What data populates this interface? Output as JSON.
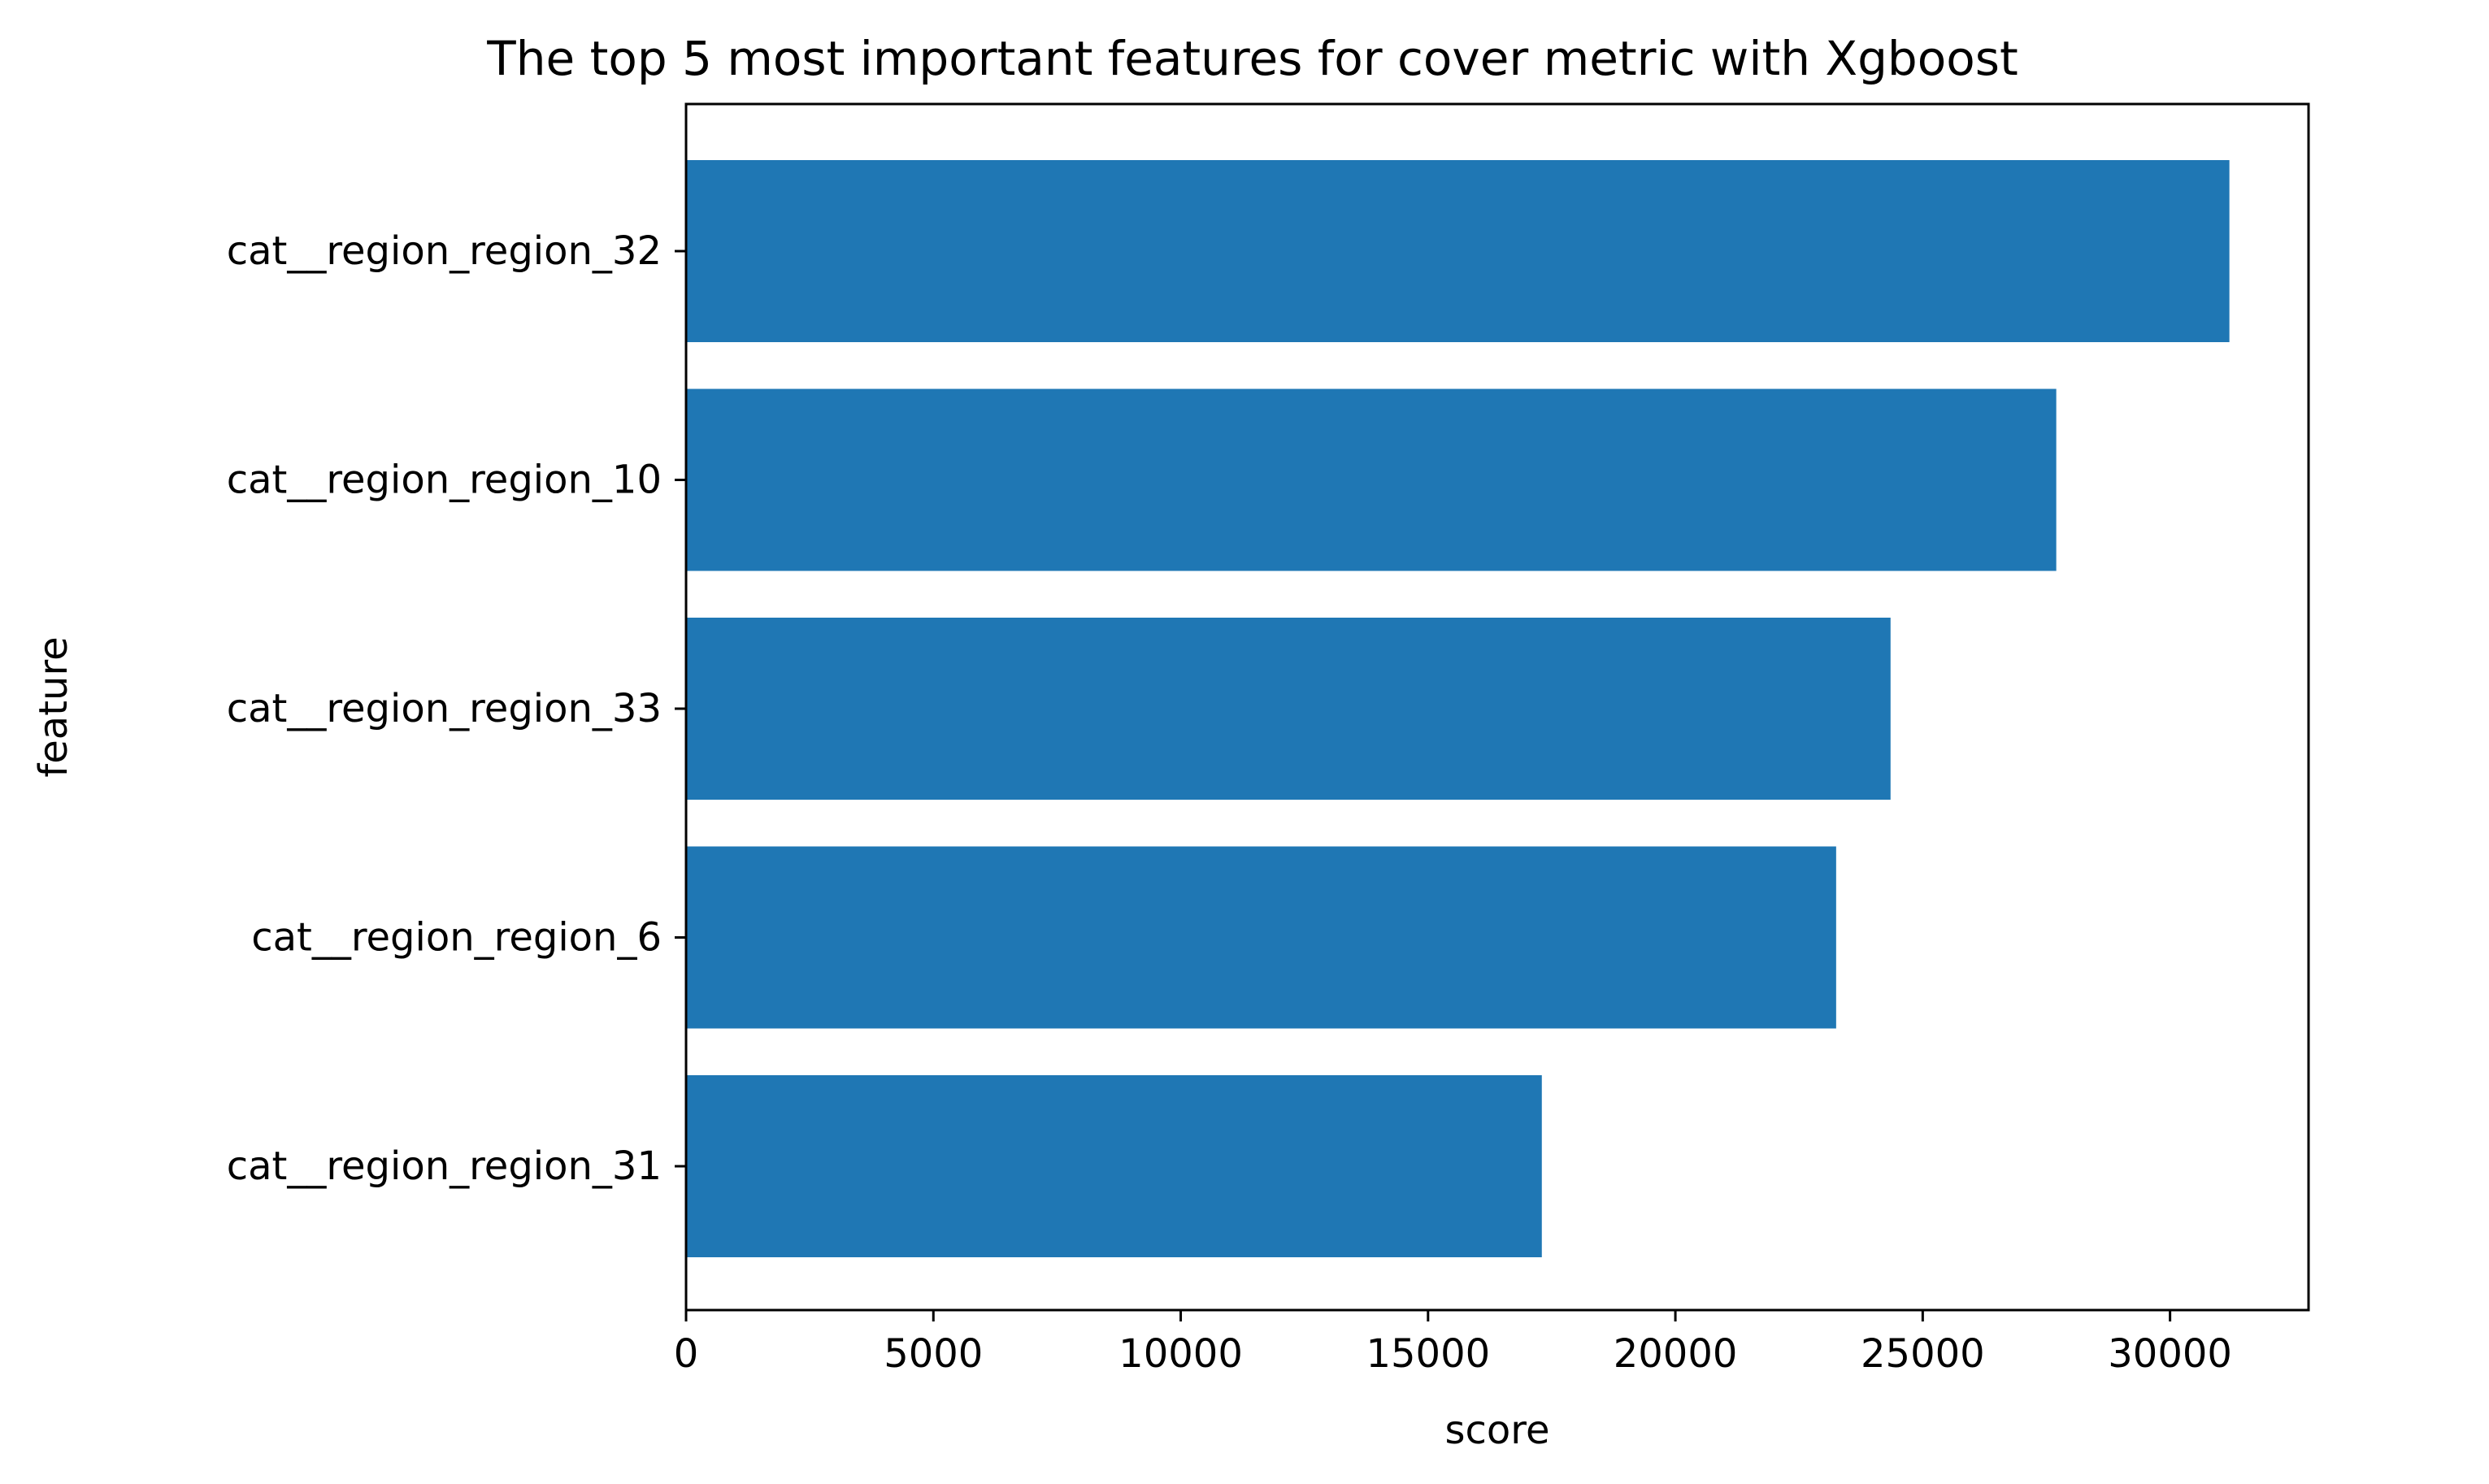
{
  "chart_data": {
    "type": "bar",
    "orientation": "horizontal",
    "title": "The top 5 most important features for cover metric with Xgboost",
    "xlabel": "score",
    "ylabel": "feature",
    "categories": [
      "cat__region_region_32",
      "cat__region_region_10",
      "cat__region_region_33",
      "cat__region_region_6",
      "cat__region_region_31"
    ],
    "values": [
      31200,
      27700,
      24350,
      23250,
      17300
    ],
    "xlim": [
      0,
      32800
    ],
    "xticks": [
      0,
      5000,
      10000,
      15000,
      20000,
      25000,
      30000
    ],
    "grid": false,
    "bar_color": "#1f77b4"
  }
}
